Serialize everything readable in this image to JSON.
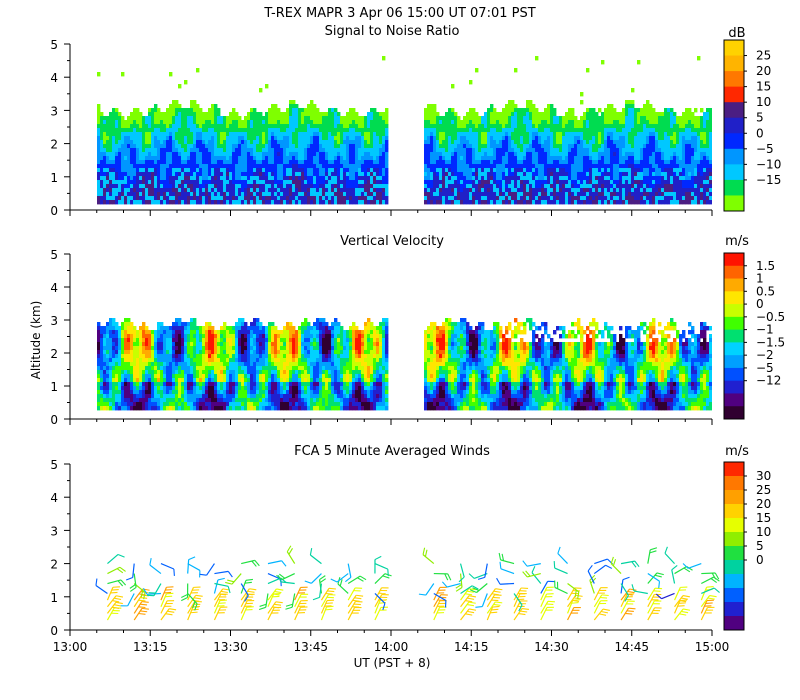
{
  "header": {
    "title": "T-REX   MAPR   3 Apr 06   15:00 UT   07:01   PST"
  },
  "colors": {
    "snr": [
      "#7fff00",
      "#00dc50",
      "#00c8ff",
      "#0096ff",
      "#0028ff",
      "#2020c8",
      "#4b1e82",
      "#ff2800",
      "#ff7800",
      "#ffb400",
      "#ffd200"
    ],
    "vvel": [
      "#300030",
      "#500080",
      "#2020d0",
      "#0050ff",
      "#00a0ff",
      "#00d2ff",
      "#00e070",
      "#40ff00",
      "#c8ff00",
      "#ffe600",
      "#ffaa00",
      "#ff6400",
      "#ff1400"
    ],
    "wind": [
      "#500080",
      "#2020d0",
      "#0060ff",
      "#00b4ff",
      "#00d2a0",
      "#20e040",
      "#90ee00",
      "#e6ff00",
      "#ffd200",
      "#ffa000",
      "#ff7800",
      "#ff2800"
    ]
  },
  "chart_data": [
    {
      "type": "heatmap",
      "title": "Signal to Noise Ratio",
      "ylabel": "",
      "ylim": [
        0,
        5
      ],
      "yticks": [
        "0",
        "1",
        "2",
        "3",
        "4",
        "5"
      ],
      "xlim": [
        "13:00",
        "15:00"
      ],
      "data_gap": [
        "13:59",
        "14:06"
      ],
      "colorbar_unit": "dB",
      "colorbar_labels": [
        "25",
        "20",
        "15",
        "10",
        "5",
        "0",
        "−5",
        "−10",
        "−15"
      ]
    },
    {
      "type": "heatmap",
      "title": "Vertical Velocity",
      "ylabel": "Altitude (km)",
      "ylim": [
        0,
        5
      ],
      "yticks": [
        "0",
        "1",
        "2",
        "3",
        "4",
        "5"
      ],
      "xlim": [
        "13:00",
        "15:00"
      ],
      "data_gap": [
        "13:59",
        "14:06"
      ],
      "colorbar_unit": "m/s",
      "colorbar_labels": [
        "1.5",
        "1",
        "0.5",
        "0",
        "−0.5",
        "−1",
        "−1.5",
        "−2",
        "−5",
        "−12"
      ]
    },
    {
      "type": "scatter",
      "title": "FCA 5 Minute Averaged Winds",
      "ylabel": "",
      "ylim": [
        0,
        5
      ],
      "yticks": [
        "0",
        "1",
        "2",
        "3",
        "4",
        "5"
      ],
      "xlim": [
        "13:00",
        "15:00"
      ],
      "xticks": [
        "13:00",
        "13:15",
        "13:30",
        "13:45",
        "14:00",
        "14:15",
        "14:30",
        "14:45",
        "15:00"
      ],
      "xlabel": "UT  (PST + 8)",
      "colorbar_unit": "m/s",
      "colorbar_labels": [
        "30",
        "25",
        "20",
        "15",
        "10",
        "5",
        "0"
      ],
      "barb_times": [
        "13:07",
        "13:12",
        "13:17",
        "13:22",
        "13:27",
        "13:32",
        "13:37",
        "13:42",
        "13:47",
        "13:52",
        "13:57",
        "14:08",
        "14:13",
        "14:18",
        "14:23",
        "14:28",
        "14:33",
        "14:38",
        "14:43",
        "14:48",
        "14:53",
        "14:58"
      ],
      "barb_altitudes": [
        0.3,
        0.5,
        0.7,
        0.9,
        1.1,
        1.4,
        1.7,
        2.0
      ]
    }
  ]
}
